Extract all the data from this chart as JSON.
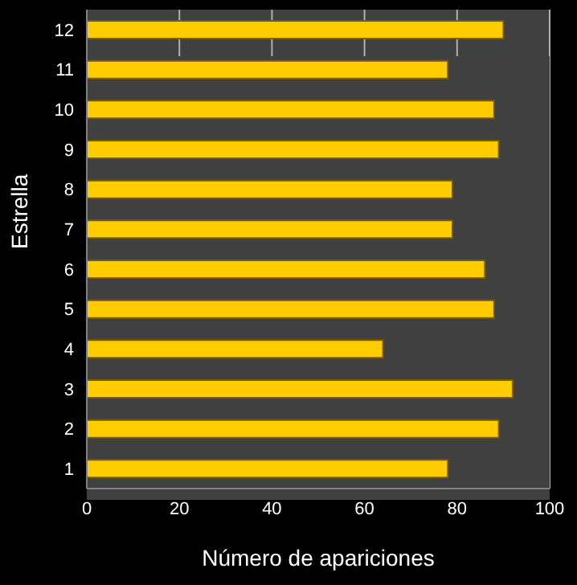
{
  "chart_data": {
    "type": "bar",
    "orientation": "horizontal",
    "xlabel": "Número de apariciones",
    "ylabel": "Estrella",
    "categories": [
      "12",
      "11",
      "10",
      "9",
      "8",
      "7",
      "6",
      "5",
      "4",
      "3",
      "2",
      "1"
    ],
    "values": [
      90,
      78,
      88,
      89,
      79,
      79,
      86,
      88,
      64,
      92,
      89,
      78
    ],
    "color": "#ffcc00",
    "xlim": [
      0,
      100
    ],
    "xticks": [
      0,
      20,
      40,
      60,
      80,
      100
    ],
    "grid": "x",
    "legend": false
  }
}
